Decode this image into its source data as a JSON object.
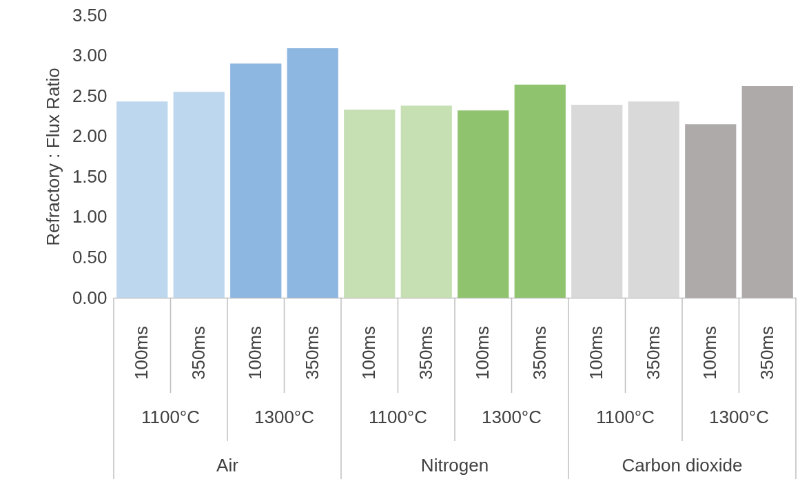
{
  "chart_data": {
    "type": "bar",
    "ylabel": "Refractory : Flux Ratio",
    "categories": [
      "100ms",
      "350ms",
      "100ms",
      "350ms",
      "100ms",
      "350ms",
      "100ms",
      "350ms",
      "100ms",
      "350ms",
      "100ms",
      "350ms"
    ],
    "values": [
      2.43,
      2.55,
      2.9,
      3.09,
      2.33,
      2.38,
      2.32,
      2.64,
      2.39,
      2.43,
      2.15,
      2.62
    ],
    "colors": [
      "#bdd7ee",
      "#bdd7ee",
      "#8db6e0",
      "#8db6e0",
      "#c6e0b4",
      "#c6e0b4",
      "#8fc36e",
      "#8fc36e",
      "#d9d9d9",
      "#d9d9d9",
      "#aeaaaa",
      "#aeaaaa"
    ],
    "annotations": [
      "1100°C",
      "1300°C",
      "1100°C",
      "1300°C",
      "1100°C",
      "1300°C",
      "Air",
      "Nitrogen",
      "Carbon dioxide"
    ],
    "ylim": [
      0,
      3.5
    ],
    "yticks": [
      {
        "value": 0,
        "label": "0.00"
      },
      {
        "value": 0.5,
        "label": "0.50"
      },
      {
        "value": 1,
        "label": "1.00"
      },
      {
        "value": 1.5,
        "label": "1.50"
      },
      {
        "value": 2,
        "label": "2.00"
      },
      {
        "value": 2.5,
        "label": "2.50"
      },
      {
        "value": 3,
        "label": "3.00"
      },
      {
        "value": 3.5,
        "label": "3.50"
      }
    ]
  }
}
